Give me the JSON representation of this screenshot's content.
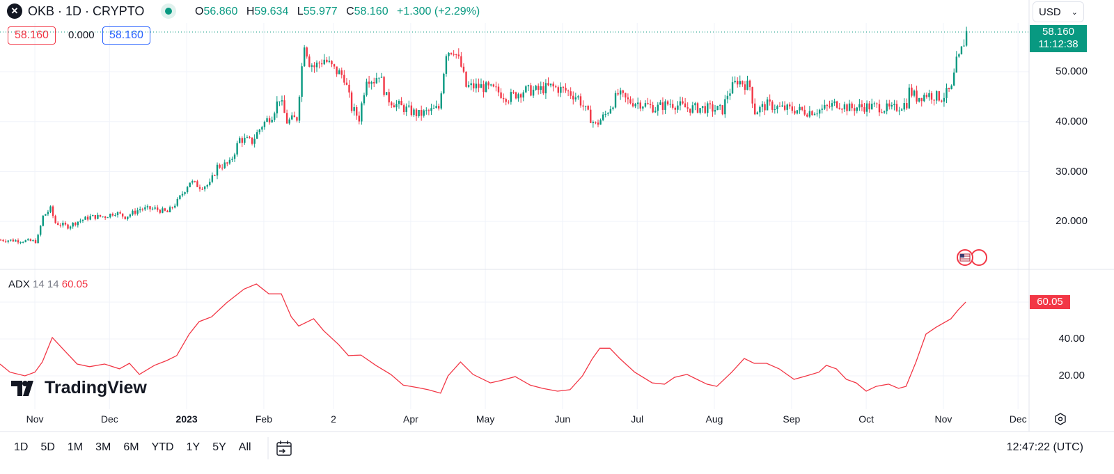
{
  "header": {
    "symbol": "OKB · 1D · CRYPTO",
    "logo_text": "✕",
    "open_label": "O",
    "open": "56.860",
    "high_label": "H",
    "high": "59.634",
    "low_label": "L",
    "low": "55.977",
    "close_label": "C",
    "close": "58.160",
    "change": "+1.300 (+2.29%)"
  },
  "boxes": {
    "sell": "58.160",
    "spread": "0.000",
    "buy": "58.160"
  },
  "currency": "USD",
  "price_tag": {
    "price": "58.160",
    "countdown": "11:12:38"
  },
  "price_axis": [
    "50.000",
    "40.000",
    "30.000",
    "20.000"
  ],
  "adx": {
    "label": "ADX",
    "p1": "14",
    "p2": "14",
    "value": "60.05",
    "axis": [
      "40.00",
      "20.00"
    ]
  },
  "time_axis": [
    "Nov",
    "Dec",
    "2023",
    "Feb",
    "2",
    "Apr",
    "May",
    "Jun",
    "Jul",
    "Aug",
    "Sep",
    "Oct",
    "Nov",
    "Dec"
  ],
  "watermark": "TradingView",
  "bottom": {
    "ranges": [
      "1D",
      "5D",
      "1M",
      "3M",
      "6M",
      "YTD",
      "1Y",
      "5Y",
      "All"
    ],
    "clock": "12:47:22 (UTC)"
  },
  "colors": {
    "up": "#089981",
    "down": "#f23645",
    "adx": "#f23645",
    "accent": "#2962ff"
  },
  "chart_data": [
    {
      "type": "candlestick",
      "title": "OKB · 1D · CRYPTO",
      "start_date": "2022-10-18",
      "x_unit": "days since start",
      "ylim": [
        11,
        63
      ],
      "yticks": [
        20,
        30,
        40,
        50
      ],
      "time_ticks": [
        14,
        44,
        75,
        106,
        134,
        165,
        195,
        226,
        256,
        287,
        318,
        348,
        379,
        409
      ],
      "close_points": [
        [
          0,
          16.3
        ],
        [
          14,
          16
        ],
        [
          15,
          17
        ],
        [
          17,
          21
        ],
        [
          20,
          22.5
        ],
        [
          22,
          19.7
        ],
        [
          27,
          19
        ],
        [
          31,
          20
        ],
        [
          36,
          20.9
        ],
        [
          42,
          21
        ],
        [
          46,
          21.8
        ],
        [
          50,
          20.9
        ],
        [
          56,
          22.5
        ],
        [
          62,
          22.5
        ],
        [
          67,
          21.8
        ],
        [
          71,
          24
        ],
        [
          76,
          28
        ],
        [
          80,
          27
        ],
        [
          84,
          27.4
        ],
        [
          87,
          31
        ],
        [
          92,
          31.6
        ],
        [
          96,
          36.5
        ],
        [
          101,
          36
        ],
        [
          105,
          39.3
        ],
        [
          109,
          41.4
        ],
        [
          112,
          44.8
        ],
        [
          115,
          40
        ],
        [
          119,
          40.7
        ],
        [
          120,
          46
        ],
        [
          122,
          56
        ],
        [
          124,
          52
        ],
        [
          126,
          51
        ],
        [
          130,
          52.5
        ],
        [
          134,
          50.4
        ],
        [
          138,
          49
        ],
        [
          141,
          42.7
        ],
        [
          144,
          40.7
        ],
        [
          147,
          49
        ],
        [
          150,
          48.3
        ],
        [
          152,
          49.7
        ],
        [
          155,
          44.8
        ],
        [
          159,
          43.4
        ],
        [
          165,
          42
        ],
        [
          168,
          41.4
        ],
        [
          172,
          42
        ],
        [
          176,
          42.7
        ],
        [
          179,
          54
        ],
        [
          182,
          54.6
        ],
        [
          185,
          51
        ],
        [
          187,
          47
        ],
        [
          193,
          47
        ],
        [
          199,
          46.2
        ],
        [
          204,
          44.8
        ],
        [
          210,
          46.2
        ],
        [
          215,
          46.2
        ],
        [
          221,
          47
        ],
        [
          227,
          46.2
        ],
        [
          232,
          44.8
        ],
        [
          236,
          41.4
        ],
        [
          239,
          39.3
        ],
        [
          243,
          41.4
        ],
        [
          248,
          45.5
        ],
        [
          252,
          44.1
        ],
        [
          257,
          43.7
        ],
        [
          263,
          42.7
        ],
        [
          269,
          43.7
        ],
        [
          276,
          42.7
        ],
        [
          283,
          42.7
        ],
        [
          290,
          42.3
        ],
        [
          292,
          45.5
        ],
        [
          296,
          48.3
        ],
        [
          301,
          47
        ],
        [
          303,
          42
        ],
        [
          308,
          43.4
        ],
        [
          313,
          42.7
        ],
        [
          319,
          42.4
        ],
        [
          324,
          42
        ],
        [
          330,
          42.4
        ],
        [
          336,
          43.7
        ],
        [
          341,
          42.7
        ],
        [
          347,
          43
        ],
        [
          352,
          43
        ],
        [
          358,
          42.4
        ],
        [
          364,
          43.7
        ],
        [
          365,
          46.2
        ],
        [
          368,
          44.8
        ],
        [
          372,
          45.5
        ],
        [
          378,
          44.8
        ],
        [
          382,
          46.5
        ],
        [
          384,
          51.8
        ],
        [
          385,
          52.6
        ],
        [
          387,
          56
        ],
        [
          388,
          58.16
        ]
      ]
    },
    {
      "type": "line",
      "title": "ADX 14 14",
      "ylim": [
        5,
        75
      ],
      "yticks": [
        20,
        40,
        60
      ],
      "points": [
        [
          0,
          26.4
        ],
        [
          4,
          22
        ],
        [
          10,
          20
        ],
        [
          14,
          22
        ],
        [
          17,
          27.5
        ],
        [
          21,
          40.8
        ],
        [
          25,
          35
        ],
        [
          31,
          26.4
        ],
        [
          36,
          25
        ],
        [
          42,
          26.4
        ],
        [
          48,
          23.8
        ],
        [
          52,
          26.8
        ],
        [
          56,
          20.8
        ],
        [
          62,
          25.7
        ],
        [
          67,
          28.3
        ],
        [
          71,
          31
        ],
        [
          76,
          42.6
        ],
        [
          80,
          49.4
        ],
        [
          85,
          52
        ],
        [
          91,
          59.6
        ],
        [
          98,
          67
        ],
        [
          103,
          69.8
        ],
        [
          108,
          64.5
        ],
        [
          113,
          64.5
        ],
        [
          117,
          52
        ],
        [
          120,
          47
        ],
        [
          126,
          51
        ],
        [
          130,
          44.5
        ],
        [
          136,
          37
        ],
        [
          140,
          31
        ],
        [
          145,
          31.3
        ],
        [
          151,
          25.7
        ],
        [
          157,
          20.8
        ],
        [
          162,
          15
        ],
        [
          168,
          13.6
        ],
        [
          172,
          12.5
        ],
        [
          177,
          10.6
        ],
        [
          180,
          20
        ],
        [
          185,
          27.5
        ],
        [
          190,
          20.8
        ],
        [
          197,
          16.2
        ],
        [
          201,
          17.4
        ],
        [
          207,
          19.6
        ],
        [
          213,
          15
        ],
        [
          218,
          13.2
        ],
        [
          224,
          11.7
        ],
        [
          229,
          12.5
        ],
        [
          234,
          20
        ],
        [
          238,
          29.4
        ],
        [
          241,
          35
        ],
        [
          245,
          35
        ],
        [
          249,
          29.4
        ],
        [
          255,
          22
        ],
        [
          262,
          16.2
        ],
        [
          267,
          15.5
        ],
        [
          271,
          19.2
        ],
        [
          276,
          20.8
        ],
        [
          280,
          18.1
        ],
        [
          284,
          15.5
        ],
        [
          288,
          14.3
        ],
        [
          294,
          22
        ],
        [
          299,
          29.4
        ],
        [
          303,
          26.8
        ],
        [
          308,
          26.8
        ],
        [
          313,
          23.8
        ],
        [
          319,
          18.1
        ],
        [
          324,
          20
        ],
        [
          329,
          22
        ],
        [
          332,
          25.7
        ],
        [
          336,
          23.8
        ],
        [
          340,
          18.1
        ],
        [
          344,
          16.2
        ],
        [
          348,
          11.7
        ],
        [
          352,
          14.3
        ],
        [
          357,
          15.5
        ],
        [
          361,
          13.2
        ],
        [
          364,
          14.3
        ],
        [
          368,
          27.5
        ],
        [
          372,
          42.6
        ],
        [
          376,
          46.3
        ],
        [
          382,
          50.9
        ],
        [
          385,
          55.8
        ],
        [
          388,
          60.05
        ]
      ]
    }
  ]
}
